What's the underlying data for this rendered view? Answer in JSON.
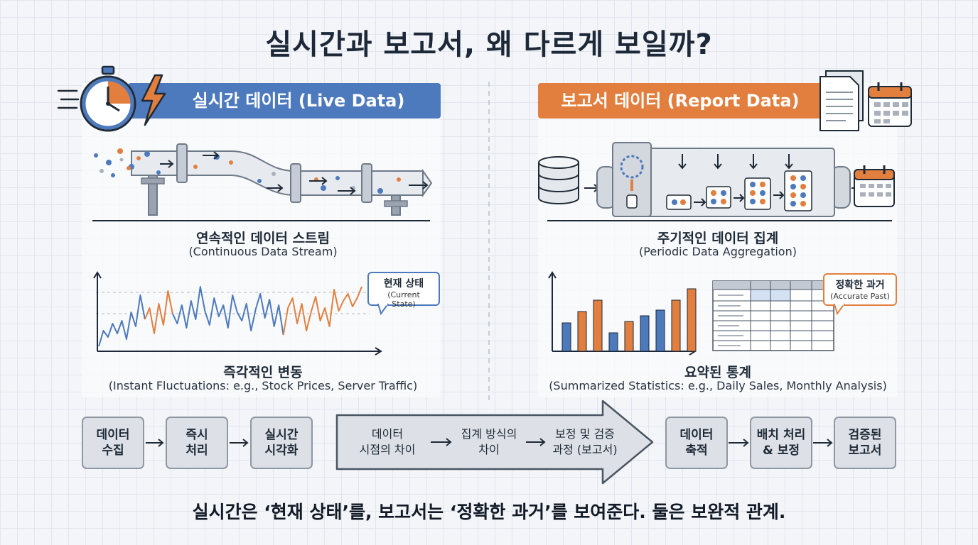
{
  "title": "실시간과 보고서, 왜 다르게 보일까?",
  "live": {
    "banner": "실시간 데이터 (Live Data)",
    "stream_ko": "연속적인 데이터 스트림",
    "stream_en": "(Continuous Data Stream)",
    "fluct_ko": "즉각적인 변동",
    "fluct_en": "(Instant Fluctuations: e.g., Stock Prices, Server Traffic)",
    "callout_ko": "현재 상태",
    "callout_en": "(Current State)"
  },
  "report": {
    "banner": "보고서 데이터 (Report Data)",
    "agg_ko": "주기적인 데이터 집계",
    "agg_en": "(Periodic Data Aggregation)",
    "stats_ko": "요약된 통계",
    "stats_en": "(Summarized Statistics: e.g., Daily Sales, Monthly Analysis)",
    "callout_ko": "정확한 과거",
    "callout_en": "(Accurate Past)"
  },
  "flow_left": [
    {
      "l1": "데이터",
      "l2": "수집"
    },
    {
      "l1": "즉시",
      "l2": "처리"
    },
    {
      "l1": "실시간",
      "l2": "시각화"
    }
  ],
  "flow_mid": [
    {
      "l1": "데이터",
      "l2": "시점의 차이"
    },
    {
      "l1": "집계 방식의",
      "l2": "차이"
    },
    {
      "l1": "보정 및 검증",
      "l2": "과정 (보고서)"
    }
  ],
  "flow_right": [
    {
      "l1": "데이터",
      "l2": "축적"
    },
    {
      "l1": "배치 처리",
      "l2": "& 보정"
    },
    {
      "l1": "검증된",
      "l2": "보고서"
    }
  ],
  "conclusion": "실시간은 ‘현재 상태’를, 보고서는 ‘정확한 과거’를 보여준다. 둘은 보완적 관계.",
  "colors": {
    "blue": "#4d79bd",
    "orange": "#e27f3e",
    "dark": "#1d2838"
  }
}
